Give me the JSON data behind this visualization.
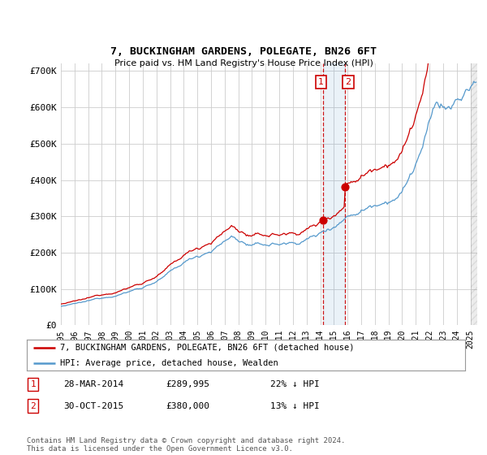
{
  "title": "7, BUCKINGHAM GARDENS, POLEGATE, BN26 6FT",
  "subtitle": "Price paid vs. HM Land Registry's House Price Index (HPI)",
  "red_color": "#cc0000",
  "blue_color": "#5599cc",
  "xlim_start": 1995.0,
  "xlim_end": 2025.5,
  "ylim": [
    0,
    720000
  ],
  "yticks": [
    0,
    100000,
    200000,
    300000,
    400000,
    500000,
    600000,
    700000
  ],
  "ytick_labels": [
    "£0",
    "£100K",
    "£200K",
    "£300K",
    "£400K",
    "£500K",
    "£600K",
    "£700K"
  ],
  "sale1_t": 2014.21,
  "sale1_p": 289995,
  "sale2_t": 2015.79,
  "sale2_p": 380000,
  "legend_red": "7, BUCKINGHAM GARDENS, POLEGATE, BN26 6FT (detached house)",
  "legend_blue": "HPI: Average price, detached house, Wealden",
  "table_rows": [
    [
      "1",
      "28-MAR-2014",
      "£289,995",
      "22% ↓ HPI"
    ],
    [
      "2",
      "30-OCT-2015",
      "£380,000",
      "13% ↓ HPI"
    ]
  ],
  "footer": "Contains HM Land Registry data © Crown copyright and database right 2024.\nThis data is licensed under the Open Government Licence v3.0.",
  "bg_color": "#ffffff",
  "grid_color": "#cccccc"
}
